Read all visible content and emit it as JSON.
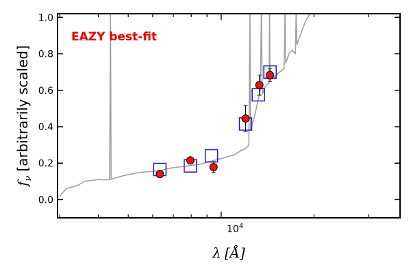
{
  "chart_data": {
    "type": "scatter",
    "title": "",
    "annotation": "EAZY best-fit",
    "xlabel": "λ [Å]",
    "ylabel": "f_ν [arbitrarily scaled]",
    "ylabel_symbol": "f",
    "ylabel_sub": "ν",
    "ylabel_text": "[arbitrarily scaled]",
    "xlabel_symbol": "λ",
    "xlabel_unit": "[Å]",
    "x_scale": "log",
    "xlim": [
      2950,
      38000
    ],
    "ylim": [
      -0.1,
      1.02
    ],
    "yticks": [
      0.0,
      0.2,
      0.4,
      0.6,
      0.8,
      1.0
    ],
    "ytick_labels": [
      "0.0",
      "0.2",
      "0.4",
      "0.6",
      "0.8",
      "1.0"
    ],
    "xtick_label": "10^4",
    "xtick_base": "10",
    "xtick_exp": "4",
    "grid": false,
    "colors": {
      "sed": "#a0a0a0",
      "model_box": "#1a1acc",
      "observed": "#ee1111",
      "annotation": "#ee0000"
    },
    "series": [
      {
        "kind": "model-template",
        "points": [
          [
            3000,
            0.02
          ],
          [
            3150,
            0.06
          ],
          [
            3300,
            0.07
          ],
          [
            3450,
            0.08
          ],
          [
            3600,
            0.1
          ],
          [
            3800,
            0.105
          ],
          [
            4000,
            0.11
          ],
          [
            4200,
            0.108
          ],
          [
            4350,
            0.11
          ],
          [
            4380,
            1.02
          ],
          [
            4400,
            0.11
          ],
          [
            4550,
            0.12
          ],
          [
            4800,
            0.13
          ],
          [
            5100,
            0.14
          ],
          [
            5500,
            0.15
          ],
          [
            6000,
            0.155
          ],
          [
            6400,
            0.16
          ],
          [
            6700,
            0.17
          ],
          [
            7000,
            0.175
          ],
          [
            7400,
            0.18
          ],
          [
            7800,
            0.185
          ],
          [
            8200,
            0.19
          ],
          [
            8600,
            0.195
          ],
          [
            9000,
            0.205
          ],
          [
            9500,
            0.215
          ],
          [
            10000,
            0.225
          ],
          [
            10500,
            0.235
          ],
          [
            11000,
            0.245
          ],
          [
            11500,
            0.265
          ],
          [
            12000,
            0.28
          ],
          [
            12300,
            0.3
          ],
          [
            12400,
            1.02
          ],
          [
            12450,
            0.38
          ],
          [
            12800,
            0.45
          ],
          [
            13200,
            0.55
          ],
          [
            13400,
            0.6
          ],
          [
            13500,
            1.02
          ],
          [
            13600,
            0.58
          ],
          [
            13900,
            0.62
          ],
          [
            14300,
            0.64
          ],
          [
            14350,
            1.02
          ],
          [
            14400,
            0.66
          ],
          [
            15000,
            0.68
          ],
          [
            15500,
            0.7
          ],
          [
            16000,
            0.72
          ],
          [
            16100,
            1.02
          ],
          [
            16200,
            0.75
          ],
          [
            16600,
            0.8
          ],
          [
            17000,
            0.82
          ],
          [
            17400,
            0.8
          ],
          [
            17500,
            1.02
          ],
          [
            17600,
            0.85
          ],
          [
            18200,
            0.92
          ],
          [
            18800,
            0.98
          ],
          [
            19400,
            1.02
          ]
        ]
      },
      {
        "kind": "model-photometry",
        "points": [
          [
            6330,
            0.165
          ],
          [
            7950,
            0.185
          ],
          [
            9300,
            0.24
          ],
          [
            12000,
            0.415
          ],
          [
            13200,
            0.575
          ],
          [
            14400,
            0.7
          ]
        ]
      },
      {
        "kind": "observed-photometry",
        "points": [
          {
            "x": 6330,
            "y": 0.14,
            "err": 0.012
          },
          {
            "x": 7950,
            "y": 0.215,
            "err": 0.01
          },
          {
            "x": 9450,
            "y": 0.178,
            "err": 0.03
          },
          {
            "x": 12000,
            "y": 0.445,
            "err": 0.07
          },
          {
            "x": 13300,
            "y": 0.628,
            "err": 0.055
          },
          {
            "x": 14400,
            "y": 0.683,
            "err": 0.035
          }
        ]
      }
    ]
  }
}
